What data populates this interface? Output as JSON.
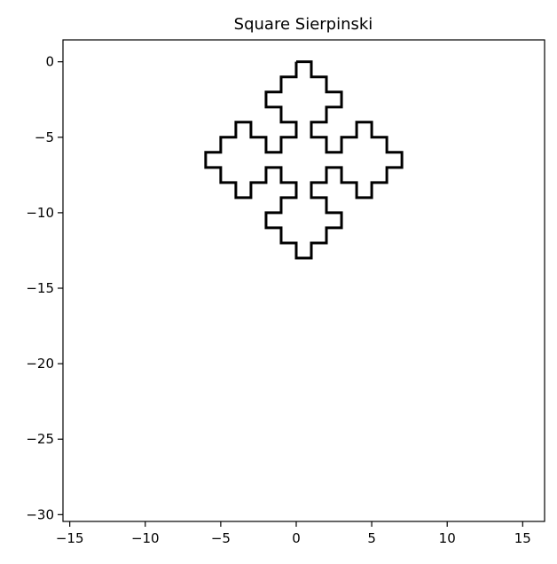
{
  "chart_data": {
    "type": "line",
    "title": "Square Sierpinski",
    "xlabel": "",
    "ylabel": "",
    "xlim": [
      -15.45,
      16.45
    ],
    "ylim": [
      -30.45,
      1.45
    ],
    "xticks": [
      -15,
      -10,
      -5,
      0,
      5,
      10,
      15
    ],
    "yticks": [
      0,
      -5,
      -10,
      -15,
      -20,
      -25,
      -30
    ],
    "xtick_labels": [
      "−15",
      "−10",
      "−5",
      "0",
      "5",
      "10",
      "15"
    ],
    "ytick_labels": [
      "0",
      "−5",
      "−10",
      "−15",
      "−20",
      "−25",
      "−30"
    ],
    "grid": false,
    "line_color": "#000000",
    "construction": {
      "curve": "Square Sierpinski (Lindenmayer system)",
      "axiom": "F+XF+F+XF",
      "rules": {
        "X": "XF-F+F-XF+F+XF-F+F-X"
      },
      "angle_degrees": 90,
      "iterations": 2,
      "start": [
        0,
        0
      ],
      "initial_heading_degrees": 0,
      "step": 1
    }
  }
}
